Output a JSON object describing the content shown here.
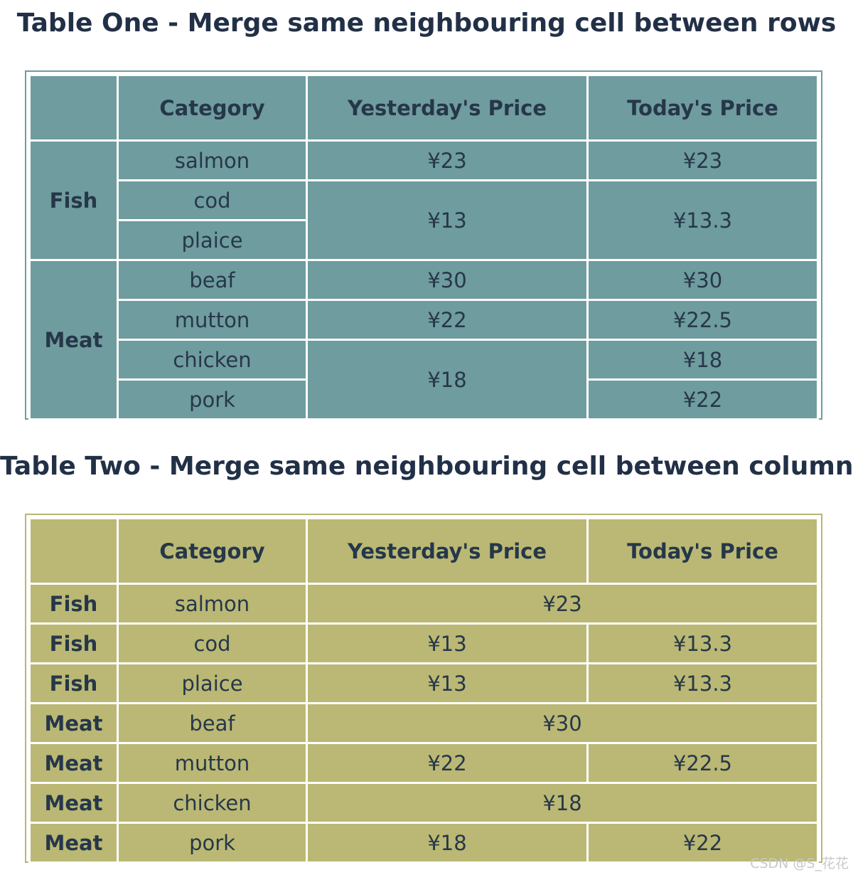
{
  "table_one": {
    "title": "Table One - Merge same neighbouring cell between rows",
    "headers": [
      "",
      "Category",
      "Yesterday's Price",
      "Today's Price"
    ],
    "groups": [
      "Fish",
      "Meat"
    ],
    "categories": [
      "salmon",
      "cod",
      "plaice",
      "beaf",
      "mutton",
      "chicken",
      "pork"
    ],
    "yesterday": [
      "¥23",
      "¥13",
      "¥30",
      "¥22",
      "¥18"
    ],
    "today": [
      "¥23",
      "¥13.3",
      "¥30",
      "¥22.5",
      "¥18",
      "¥22"
    ]
  },
  "table_two": {
    "title": "Table Two - Merge same neighbouring cell between columns",
    "headers": [
      "",
      "Category",
      "Yesterday's Price",
      "Today's Price"
    ],
    "rows": [
      {
        "group": "Fish",
        "category": "salmon",
        "merged": "¥23"
      },
      {
        "group": "Fish",
        "category": "cod",
        "yesterday": "¥13",
        "today": "¥13.3"
      },
      {
        "group": "Fish",
        "category": "plaice",
        "yesterday": "¥13",
        "today": "¥13.3"
      },
      {
        "group": "Meat",
        "category": "beaf",
        "merged": "¥30"
      },
      {
        "group": "Meat",
        "category": "mutton",
        "yesterday": "¥22",
        "today": "¥22.5"
      },
      {
        "group": "Meat",
        "category": "chicken",
        "merged": "¥18"
      },
      {
        "group": "Meat",
        "category": "pork",
        "yesterday": "¥18",
        "today": "¥22"
      }
    ]
  },
  "colors": {
    "table_one_bg": "#6f9c9e",
    "table_two_bg": "#bab874",
    "text": "#26374a",
    "grid": "#ffffff"
  },
  "watermark": "CSDN @S_花花"
}
